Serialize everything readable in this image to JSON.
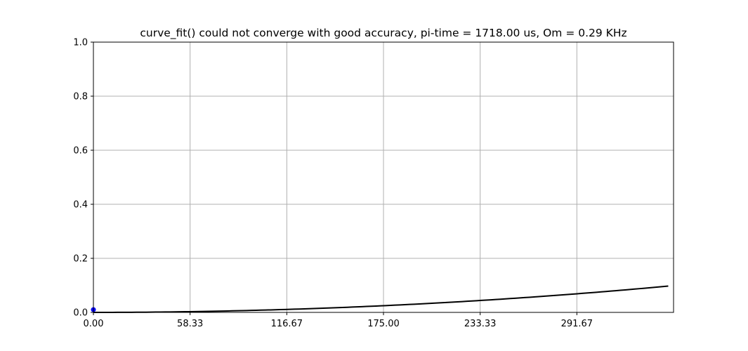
{
  "chart_data": {
    "type": "line",
    "title": "curve_fit() could not converge with good accuracy, pi-time = 1718.00 us, Om = 0.29 KHz",
    "xlabel": "",
    "ylabel": "",
    "xlim": [
      0,
      350
    ],
    "ylim": [
      0,
      1.0
    ],
    "grid": true,
    "xticks": [
      0,
      58.33,
      116.67,
      175.0,
      233.33,
      291.67
    ],
    "xtick_labels": [
      "0.00",
      "58.33",
      "116.67",
      "175.00",
      "233.33",
      "291.67"
    ],
    "yticks": [
      0,
      0.2,
      0.4,
      0.6,
      0.8,
      1.0
    ],
    "ytick_labels": [
      "0.0",
      "0.2",
      "0.4",
      "0.6",
      "0.8",
      "1.0"
    ],
    "series": [
      {
        "kind": "fit-line",
        "color": "#000000",
        "x": [
          0,
          50,
          100,
          150,
          200,
          250,
          300,
          346.8
        ],
        "y": [
          0.0,
          0.0021,
          0.0083,
          0.0185,
          0.0326,
          0.0503,
          0.0716,
          0.0973
        ]
      },
      {
        "kind": "data-points",
        "color": "#0000ff",
        "x": [
          0
        ],
        "y": [
          0.005
        ]
      }
    ]
  }
}
